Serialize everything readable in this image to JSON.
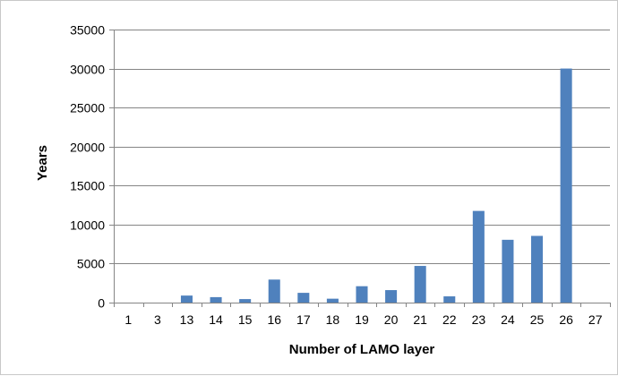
{
  "chart_data": {
    "type": "bar",
    "title": "",
    "xlabel": "Number of LAMO layer",
    "ylabel": "Years",
    "categories": [
      "1",
      "3",
      "13",
      "14",
      "15",
      "16",
      "17",
      "18",
      "19",
      "20",
      "21",
      "22",
      "23",
      "24",
      "25",
      "26",
      "27"
    ],
    "values": [
      0,
      0,
      900,
      700,
      450,
      2950,
      1250,
      500,
      2100,
      1600,
      4700,
      800,
      11750,
      8050,
      8550,
      30000,
      0
    ],
    "ylim": [
      0,
      35000
    ],
    "yticks": [
      0,
      5000,
      10000,
      15000,
      20000,
      25000,
      30000,
      35000
    ],
    "grid": true,
    "legend": "none",
    "colors": {
      "bar": "#4f81bd",
      "grid": "#858585",
      "axis": "#858585"
    }
  }
}
